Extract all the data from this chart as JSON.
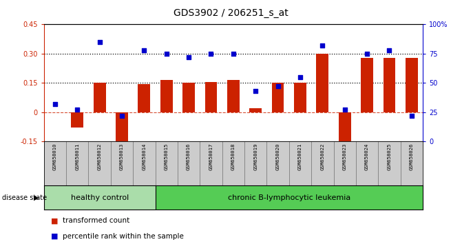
{
  "title": "GDS3902 / 206251_s_at",
  "samples": [
    "GSM658010",
    "GSM658011",
    "GSM658012",
    "GSM658013",
    "GSM658014",
    "GSM658015",
    "GSM658016",
    "GSM658017",
    "GSM658018",
    "GSM658019",
    "GSM658020",
    "GSM658021",
    "GSM658022",
    "GSM658023",
    "GSM658024",
    "GSM658025",
    "GSM658026"
  ],
  "transformed_count": [
    0.0,
    -0.08,
    0.15,
    -0.18,
    0.145,
    0.165,
    0.15,
    0.155,
    0.165,
    0.02,
    0.15,
    0.15,
    0.3,
    -0.2,
    0.28,
    0.28,
    0.28
  ],
  "percentile_rank": [
    32,
    27,
    85,
    22,
    78,
    75,
    72,
    75,
    75,
    43,
    47,
    55,
    82,
    27,
    75,
    78,
    22
  ],
  "bar_color": "#cc2200",
  "dot_color": "#0000cc",
  "ylim_left": [
    -0.15,
    0.45
  ],
  "ylim_right": [
    0,
    100
  ],
  "yticks_left": [
    -0.15,
    0.0,
    0.15,
    0.3,
    0.45
  ],
  "yticks_right": [
    0,
    25,
    50,
    75,
    100
  ],
  "hline_values": [
    0.15,
    0.3
  ],
  "hc_color": "#aaddaa",
  "leuk_color": "#55cc55",
  "background_labels": "#cccccc",
  "legend_bar_label": "transformed count",
  "legend_dot_label": "percentile rank within the sample",
  "disease_state_label": "disease state",
  "title_fontsize": 10,
  "tick_fontsize": 7,
  "label_fontsize": 6,
  "group_fontsize": 8
}
